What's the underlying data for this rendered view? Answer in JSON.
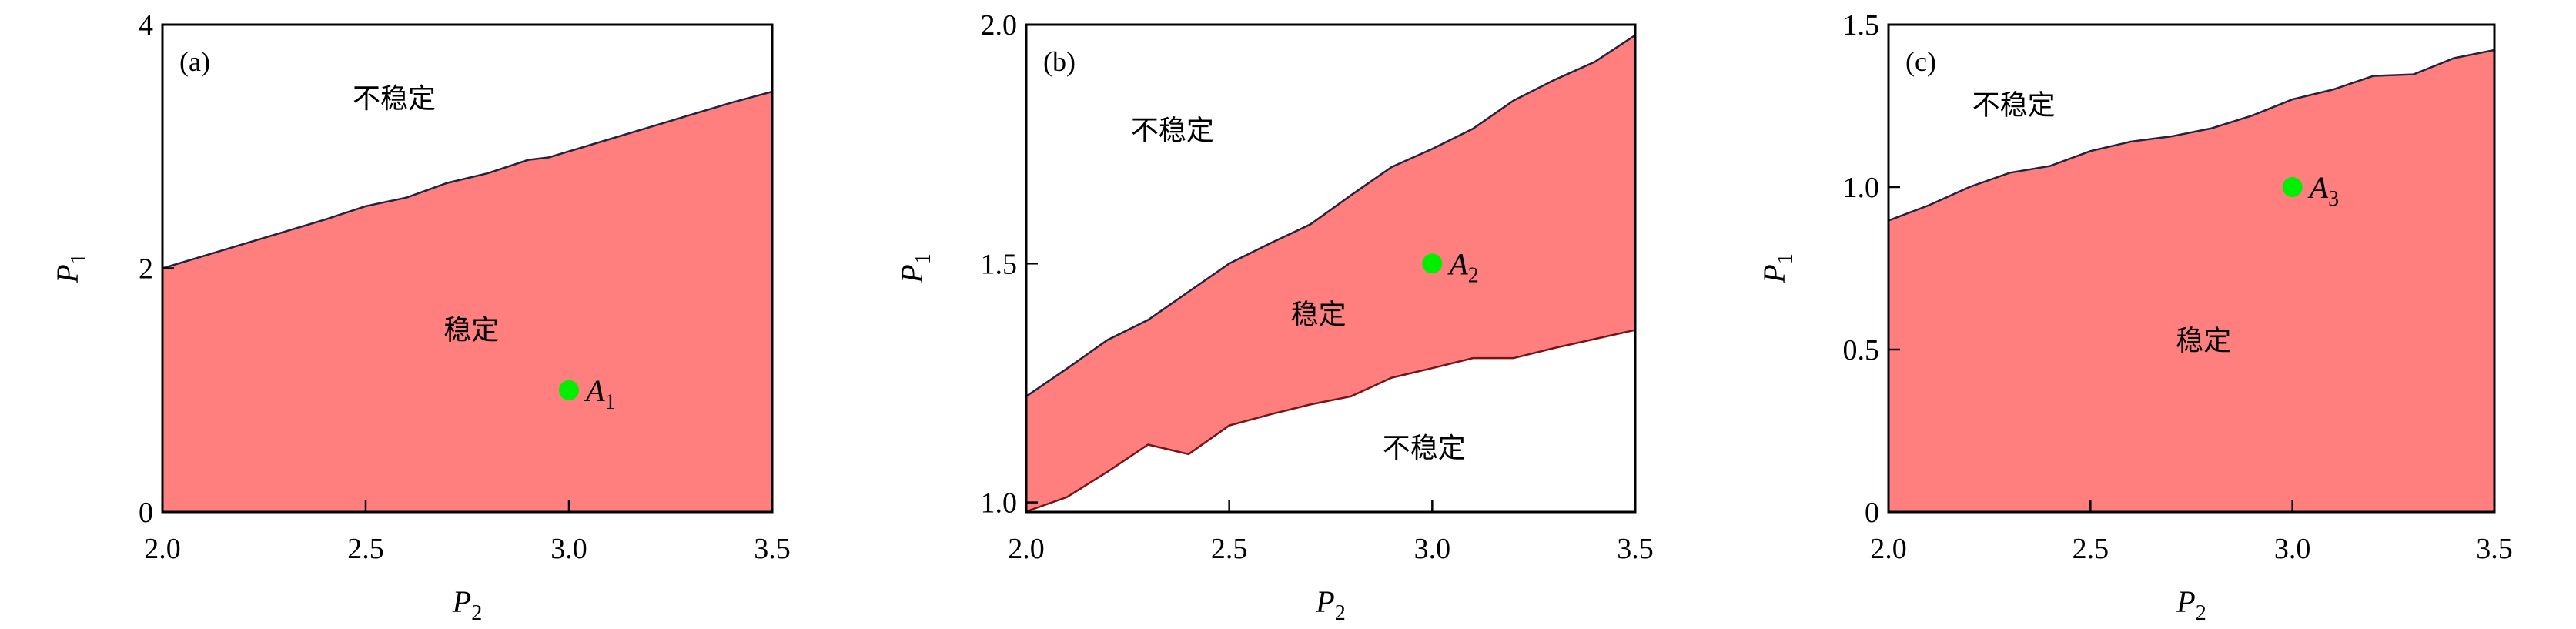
{
  "chart_data": [
    {
      "type": "area",
      "panel_label": "(a)",
      "xlabel": {
        "main": "P",
        "sub": "2"
      },
      "ylabel": {
        "main": "P",
        "sub": "1"
      },
      "xlim": [
        2.0,
        3.5
      ],
      "ylim": [
        0,
        4
      ],
      "xticks": [
        "2.0",
        "2.5",
        "3.0",
        "3.5"
      ],
      "xtick_values": [
        2.0,
        2.5,
        3.0,
        3.5
      ],
      "yticks": [
        "0",
        "2",
        "4"
      ],
      "ytick_values": [
        0,
        2,
        4
      ],
      "x": [
        2.0,
        2.1,
        2.2,
        2.3,
        2.4,
        2.5,
        2.6,
        2.7,
        2.8,
        2.9,
        2.95,
        3.0,
        3.1,
        3.2,
        3.3,
        3.4,
        3.5
      ],
      "upper": [
        2.0,
        2.1,
        2.2,
        2.3,
        2.4,
        2.51,
        2.58,
        2.7,
        2.78,
        2.89,
        2.91,
        2.96,
        3.06,
        3.16,
        3.26,
        3.36,
        3.45
      ],
      "lower": null,
      "point": {
        "label": "A",
        "sub": "1",
        "x": 3.0,
        "y": 1.0
      },
      "annotations": [
        {
          "text": "不稳定",
          "x": 2.57,
          "y": 3.4
        },
        {
          "text": "稳定",
          "x": 2.76,
          "y": 1.5
        }
      ]
    },
    {
      "type": "area",
      "panel_label": "(b)",
      "xlabel": {
        "main": "P",
        "sub": "2"
      },
      "ylabel": {
        "main": "P",
        "sub": "1"
      },
      "xlim": [
        2.0,
        3.5
      ],
      "ylim": [
        0.98,
        2.0
      ],
      "xticks": [
        "2.0",
        "2.5",
        "3.0",
        "3.5"
      ],
      "xtick_values": [
        2.0,
        2.5,
        3.0,
        3.5
      ],
      "yticks": [
        "1.0",
        "1.5",
        "2.0"
      ],
      "ytick_values": [
        1.0,
        1.5,
        2.0
      ],
      "x": [
        2.0,
        2.1,
        2.2,
        2.3,
        2.4,
        2.5,
        2.6,
        2.7,
        2.8,
        2.9,
        3.0,
        3.1,
        3.2,
        3.3,
        3.4,
        3.5
      ],
      "upper": [
        1.222,
        1.28,
        1.34,
        1.382,
        1.441,
        1.5,
        1.542,
        1.582,
        1.643,
        1.702,
        1.74,
        1.782,
        1.841,
        1.884,
        1.922,
        1.978
      ],
      "lower": [
        0.981,
        1.011,
        1.064,
        1.121,
        1.101,
        1.161,
        1.184,
        1.205,
        1.222,
        1.261,
        1.281,
        1.302,
        1.302,
        1.323,
        1.342,
        1.361
      ],
      "point": {
        "label": "A",
        "sub": "2",
        "x": 3.0,
        "y": 1.5
      },
      "annotations": [
        {
          "text": "不稳定",
          "x": 2.36,
          "y": 1.78
        },
        {
          "text": "稳定",
          "x": 2.72,
          "y": 1.395
        },
        {
          "text": "不稳定",
          "x": 2.98,
          "y": 1.115
        }
      ]
    },
    {
      "type": "area",
      "panel_label": "(c)",
      "xlabel": {
        "main": "P",
        "sub": "2"
      },
      "ylabel": {
        "main": "P",
        "sub": "1"
      },
      "xlim": [
        2.0,
        3.5
      ],
      "ylim": [
        0,
        1.5
      ],
      "xticks": [
        "2.0",
        "2.5",
        "3.0",
        "3.5"
      ],
      "xtick_values": [
        2.0,
        2.5,
        3.0,
        3.5
      ],
      "yticks": [
        "0",
        "0.5",
        "1.0",
        "1.5"
      ],
      "ytick_values": [
        0,
        0.5,
        1.0,
        1.5
      ],
      "x": [
        2.0,
        2.1,
        2.2,
        2.3,
        2.4,
        2.5,
        2.6,
        2.7,
        2.8,
        2.9,
        3.0,
        3.1,
        3.2,
        3.3,
        3.4,
        3.5
      ],
      "upper": [
        0.897,
        0.944,
        1.0,
        1.044,
        1.065,
        1.111,
        1.14,
        1.156,
        1.181,
        1.22,
        1.27,
        1.3,
        1.342,
        1.347,
        1.397,
        1.422
      ],
      "lower": null,
      "point": {
        "label": "A",
        "sub": "3",
        "x": 3.0,
        "y": 1.0
      },
      "annotations": [
        {
          "text": "不稳定",
          "x": 2.31,
          "y": 1.255
        },
        {
          "text": "稳定",
          "x": 2.78,
          "y": 0.53
        }
      ]
    }
  ],
  "colors": {
    "stable_fill": "#ff7f7f",
    "upper_line": "#1c2541",
    "lower_line": "#7a1414",
    "point": "#00ee00"
  }
}
